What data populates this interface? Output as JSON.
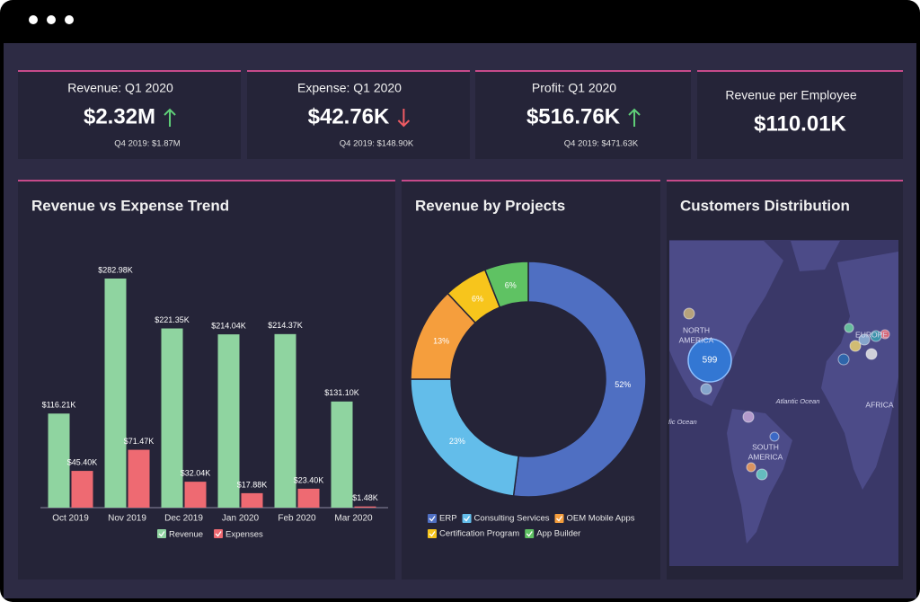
{
  "kpis": [
    {
      "title": "Revenue: Q1 2020",
      "value": "$2.32M",
      "trend": "up",
      "comparison": "Q4 2019: $1.87M"
    },
    {
      "title": "Expense: Q1 2020",
      "value": "$42.76K",
      "trend": "down",
      "comparison": "Q4 2019: $148.90K"
    },
    {
      "title": "Profit: Q1 2020",
      "value": "$516.76K",
      "trend": "up",
      "comparison": "Q4 2019: $471.63K"
    },
    {
      "title": "Revenue per Employee",
      "value": "$110.01K"
    }
  ],
  "chart_data": [
    {
      "type": "bar",
      "title": "Revenue vs Expense Trend",
      "categories": [
        "Oct 2019",
        "Nov 2019",
        "Dec 2019",
        "Jan 2020",
        "Feb 2020",
        "Mar 2020"
      ],
      "series": [
        {
          "name": "Revenue",
          "color": "#8fd4a0",
          "values": [
            116.21,
            282.98,
            221.35,
            214.04,
            214.37,
            131.1
          ],
          "value_labels": [
            "$116.21K",
            "$282.98K",
            "$221.35K",
            "$214.04K",
            "$214.37K",
            "$131.10K"
          ]
        },
        {
          "name": "Expenses",
          "color": "#ee6a72",
          "values": [
            45.4,
            71.47,
            32.04,
            17.88,
            23.4,
            1.48
          ],
          "value_labels": [
            "$45.40K",
            "$71.47K",
            "$32.04K",
            "$17.88K",
            "$23.40K",
            "$1.48K"
          ]
        }
      ]
    },
    {
      "type": "pie",
      "title": "Revenue by Projects",
      "categories": [
        "ERP",
        "Consulting Services",
        "OEM Mobile Apps",
        "Certification Program",
        "App Builder"
      ],
      "values": [
        52,
        23,
        13,
        6,
        6
      ],
      "value_labels": [
        "52%",
        "23%",
        "13%",
        "6%",
        "6%"
      ],
      "colors": [
        "#4f6fc2",
        "#63bdea",
        "#f59e3d",
        "#f7c51c",
        "#5fc263"
      ]
    }
  ],
  "map": {
    "title": "Customers Distribution",
    "labels": [
      "NORTH",
      "AMERICA",
      "EUROPE",
      "Atlantic Ocean",
      "AFRICA",
      "SOUTH",
      "AMERICA",
      "fic Ocean"
    ],
    "bubble_label": "599"
  }
}
